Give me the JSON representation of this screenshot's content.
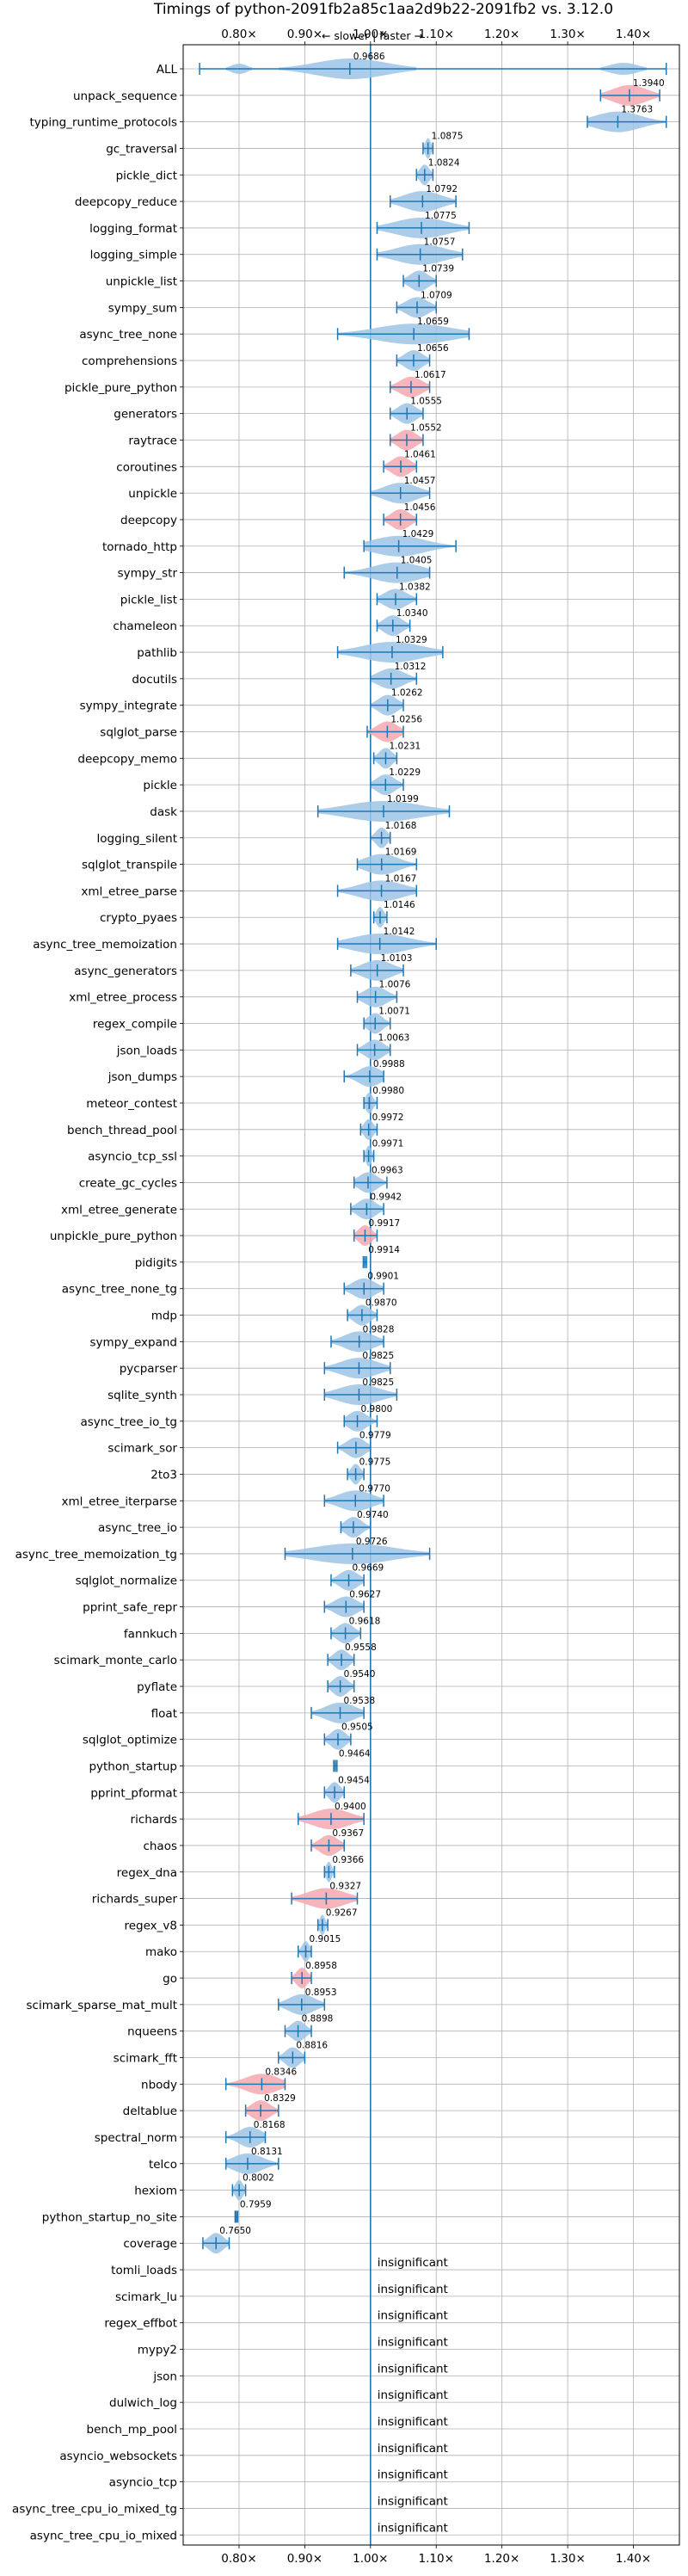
{
  "chart_data": {
    "type": "violin",
    "title": "Timings of python-2091fb2a85c1aa2d9b22-2091fb2 vs. 3.12.0",
    "direction_label": "← slower | faster →",
    "xlim": [
      0.715,
      1.47
    ],
    "xticks": [
      0.8,
      0.9,
      1.0,
      1.1,
      1.2,
      1.3,
      1.4
    ],
    "xtick_labels": [
      "0.80×",
      "0.90×",
      "1.00×",
      "1.10×",
      "1.20×",
      "1.30×",
      "1.40×"
    ],
    "grid": true,
    "colors": {
      "normal": "#9ec4e6",
      "highlight": "#f4a8ae",
      "line": "#1f77b4",
      "zero": "#1f77b4"
    },
    "rows": [
      {
        "name": "ALL",
        "value": 0.9686,
        "label": "0.9686",
        "lo": 0.74,
        "hi": 1.45,
        "hl": false,
        "shape": "all"
      },
      {
        "name": "unpack_sequence",
        "value": 1.394,
        "label": "1.3940",
        "lo": 1.35,
        "hi": 1.44,
        "hl": true
      },
      {
        "name": "typing_runtime_protocols",
        "value": 1.3763,
        "label": "1.3763",
        "lo": 1.33,
        "hi": 1.45,
        "hl": false
      },
      {
        "name": "gc_traversal",
        "value": 1.0875,
        "label": "1.0875",
        "lo": 1.08,
        "hi": 1.095,
        "hl": false
      },
      {
        "name": "pickle_dict",
        "value": 1.0824,
        "label": "1.0824",
        "lo": 1.07,
        "hi": 1.095,
        "hl": false
      },
      {
        "name": "deepcopy_reduce",
        "value": 1.0792,
        "label": "1.0792",
        "lo": 1.03,
        "hi": 1.13,
        "hl": false
      },
      {
        "name": "logging_format",
        "value": 1.0775,
        "label": "1.0775",
        "lo": 1.01,
        "hi": 1.15,
        "hl": false
      },
      {
        "name": "logging_simple",
        "value": 1.0757,
        "label": "1.0757",
        "lo": 1.01,
        "hi": 1.14,
        "hl": false
      },
      {
        "name": "unpickle_list",
        "value": 1.0739,
        "label": "1.0739",
        "lo": 1.05,
        "hi": 1.1,
        "hl": false
      },
      {
        "name": "sympy_sum",
        "value": 1.0709,
        "label": "1.0709",
        "lo": 1.04,
        "hi": 1.1,
        "hl": false
      },
      {
        "name": "async_tree_none",
        "value": 1.0659,
        "label": "1.0659",
        "lo": 0.95,
        "hi": 1.15,
        "hl": false
      },
      {
        "name": "comprehensions",
        "value": 1.0656,
        "label": "1.0656",
        "lo": 1.04,
        "hi": 1.09,
        "hl": false
      },
      {
        "name": "pickle_pure_python",
        "value": 1.0617,
        "label": "1.0617",
        "lo": 1.03,
        "hi": 1.09,
        "hl": true
      },
      {
        "name": "generators",
        "value": 1.0555,
        "label": "1.0555",
        "lo": 1.03,
        "hi": 1.08,
        "hl": false
      },
      {
        "name": "raytrace",
        "value": 1.0552,
        "label": "1.0552",
        "lo": 1.03,
        "hi": 1.08,
        "hl": true
      },
      {
        "name": "coroutines",
        "value": 1.0461,
        "label": "1.0461",
        "lo": 1.02,
        "hi": 1.07,
        "hl": true
      },
      {
        "name": "unpickle",
        "value": 1.0457,
        "label": "1.0457",
        "lo": 1.0,
        "hi": 1.09,
        "hl": false
      },
      {
        "name": "deepcopy",
        "value": 1.0456,
        "label": "1.0456",
        "lo": 1.02,
        "hi": 1.07,
        "hl": true
      },
      {
        "name": "tornado_http",
        "value": 1.0429,
        "label": "1.0429",
        "lo": 0.99,
        "hi": 1.13,
        "hl": false
      },
      {
        "name": "sympy_str",
        "value": 1.0405,
        "label": "1.0405",
        "lo": 0.96,
        "hi": 1.09,
        "hl": false
      },
      {
        "name": "pickle_list",
        "value": 1.0382,
        "label": "1.0382",
        "lo": 1.01,
        "hi": 1.07,
        "hl": false
      },
      {
        "name": "chameleon",
        "value": 1.034,
        "label": "1.0340",
        "lo": 1.01,
        "hi": 1.06,
        "hl": false
      },
      {
        "name": "pathlib",
        "value": 1.0329,
        "label": "1.0329",
        "lo": 0.95,
        "hi": 1.11,
        "hl": false
      },
      {
        "name": "docutils",
        "value": 1.0312,
        "label": "1.0312",
        "lo": 1.0,
        "hi": 1.07,
        "hl": false
      },
      {
        "name": "sympy_integrate",
        "value": 1.0262,
        "label": "1.0262",
        "lo": 1.0,
        "hi": 1.05,
        "hl": false
      },
      {
        "name": "sqlglot_parse",
        "value": 1.0256,
        "label": "1.0256",
        "lo": 0.995,
        "hi": 1.05,
        "hl": true
      },
      {
        "name": "deepcopy_memo",
        "value": 1.0231,
        "label": "1.0231",
        "lo": 1.005,
        "hi": 1.04,
        "hl": false
      },
      {
        "name": "pickle",
        "value": 1.0229,
        "label": "1.0229",
        "lo": 1.0,
        "hi": 1.05,
        "hl": false
      },
      {
        "name": "dask",
        "value": 1.0199,
        "label": "1.0199",
        "lo": 0.92,
        "hi": 1.12,
        "hl": false
      },
      {
        "name": "logging_silent",
        "value": 1.0168,
        "label": "1.0168",
        "lo": 1.0,
        "hi": 1.03,
        "hl": false
      },
      {
        "name": "sqlglot_transpile",
        "value": 1.0169,
        "label": "1.0169",
        "lo": 0.98,
        "hi": 1.07,
        "hl": false
      },
      {
        "name": "xml_etree_parse",
        "value": 1.0167,
        "label": "1.0167",
        "lo": 0.95,
        "hi": 1.07,
        "hl": false
      },
      {
        "name": "crypto_pyaes",
        "value": 1.0146,
        "label": "1.0146",
        "lo": 1.005,
        "hi": 1.025,
        "hl": false
      },
      {
        "name": "async_tree_memoization",
        "value": 1.0142,
        "label": "1.0142",
        "lo": 0.95,
        "hi": 1.1,
        "hl": false
      },
      {
        "name": "async_generators",
        "value": 1.0103,
        "label": "1.0103",
        "lo": 0.97,
        "hi": 1.05,
        "hl": false
      },
      {
        "name": "xml_etree_process",
        "value": 1.0076,
        "label": "1.0076",
        "lo": 0.98,
        "hi": 1.04,
        "hl": false
      },
      {
        "name": "regex_compile",
        "value": 1.0071,
        "label": "1.0071",
        "lo": 0.99,
        "hi": 1.03,
        "hl": false
      },
      {
        "name": "json_loads",
        "value": 1.0063,
        "label": "1.0063",
        "lo": 0.98,
        "hi": 1.03,
        "hl": false
      },
      {
        "name": "json_dumps",
        "value": 0.9988,
        "label": "0.9988",
        "lo": 0.96,
        "hi": 1.02,
        "hl": false
      },
      {
        "name": "meteor_contest",
        "value": 0.998,
        "label": "0.9980",
        "lo": 0.99,
        "hi": 1.01,
        "hl": false
      },
      {
        "name": "bench_thread_pool",
        "value": 0.9972,
        "label": "0.9972",
        "lo": 0.985,
        "hi": 1.01,
        "hl": false
      },
      {
        "name": "asyncio_tcp_ssl",
        "value": 0.9971,
        "label": "0.9971",
        "lo": 0.99,
        "hi": 1.005,
        "hl": false
      },
      {
        "name": "create_gc_cycles",
        "value": 0.9963,
        "label": "0.9963",
        "lo": 0.975,
        "hi": 1.025,
        "hl": false
      },
      {
        "name": "xml_etree_generate",
        "value": 0.9942,
        "label": "0.9942",
        "lo": 0.97,
        "hi": 1.02,
        "hl": false
      },
      {
        "name": "unpickle_pure_python",
        "value": 0.9917,
        "label": "0.9917",
        "lo": 0.975,
        "hi": 1.01,
        "hl": true
      },
      {
        "name": "pidigits",
        "value": 0.9914,
        "label": "0.9914",
        "lo": 0.989,
        "hi": 0.994,
        "hl": false
      },
      {
        "name": "async_tree_none_tg",
        "value": 0.9901,
        "label": "0.9901",
        "lo": 0.96,
        "hi": 1.02,
        "hl": false
      },
      {
        "name": "mdp",
        "value": 0.987,
        "label": "0.9870",
        "lo": 0.965,
        "hi": 1.01,
        "hl": false
      },
      {
        "name": "sympy_expand",
        "value": 0.9828,
        "label": "0.9828",
        "lo": 0.94,
        "hi": 1.02,
        "hl": false
      },
      {
        "name": "pycparser",
        "value": 0.9825,
        "label": "0.9825",
        "lo": 0.93,
        "hi": 1.03,
        "hl": false
      },
      {
        "name": "sqlite_synth",
        "value": 0.9825,
        "label": "0.9825",
        "lo": 0.93,
        "hi": 1.04,
        "hl": false
      },
      {
        "name": "async_tree_io_tg",
        "value": 0.98,
        "label": "0.9800",
        "lo": 0.96,
        "hi": 1.01,
        "hl": false
      },
      {
        "name": "scimark_sor",
        "value": 0.9779,
        "label": "0.9779",
        "lo": 0.95,
        "hi": 1.0,
        "hl": false
      },
      {
        "name": "2to3",
        "value": 0.9775,
        "label": "0.9775",
        "lo": 0.965,
        "hi": 0.99,
        "hl": false
      },
      {
        "name": "xml_etree_iterparse",
        "value": 0.977,
        "label": "0.9770",
        "lo": 0.93,
        "hi": 1.02,
        "hl": false
      },
      {
        "name": "async_tree_io",
        "value": 0.974,
        "label": "0.9740",
        "lo": 0.955,
        "hi": 1.0,
        "hl": false
      },
      {
        "name": "async_tree_memoization_tg",
        "value": 0.9726,
        "label": "0.9726",
        "lo": 0.87,
        "hi": 1.09,
        "hl": false
      },
      {
        "name": "sqlglot_normalize",
        "value": 0.9669,
        "label": "0.9669",
        "lo": 0.94,
        "hi": 0.99,
        "hl": false
      },
      {
        "name": "pprint_safe_repr",
        "value": 0.9627,
        "label": "0.9627",
        "lo": 0.93,
        "hi": 0.99,
        "hl": false
      },
      {
        "name": "fannkuch",
        "value": 0.9618,
        "label": "0.9618",
        "lo": 0.94,
        "hi": 0.985,
        "hl": false
      },
      {
        "name": "scimark_monte_carlo",
        "value": 0.9558,
        "label": "0.9558",
        "lo": 0.935,
        "hi": 0.975,
        "hl": false
      },
      {
        "name": "pyflate",
        "value": 0.954,
        "label": "0.9540",
        "lo": 0.935,
        "hi": 0.975,
        "hl": false
      },
      {
        "name": "float",
        "value": 0.9538,
        "label": "0.9538",
        "lo": 0.91,
        "hi": 0.99,
        "hl": false
      },
      {
        "name": "sqlglot_optimize",
        "value": 0.9505,
        "label": "0.9505",
        "lo": 0.93,
        "hi": 0.97,
        "hl": false
      },
      {
        "name": "python_startup",
        "value": 0.9464,
        "label": "0.9464",
        "lo": 0.944,
        "hi": 0.949,
        "hl": false
      },
      {
        "name": "pprint_pformat",
        "value": 0.9454,
        "label": "0.9454",
        "lo": 0.93,
        "hi": 0.96,
        "hl": false
      },
      {
        "name": "richards",
        "value": 0.94,
        "label": "0.9400",
        "lo": 0.89,
        "hi": 0.99,
        "hl": true
      },
      {
        "name": "chaos",
        "value": 0.9367,
        "label": "0.9367",
        "lo": 0.91,
        "hi": 0.96,
        "hl": true
      },
      {
        "name": "regex_dna",
        "value": 0.9366,
        "label": "0.9366",
        "lo": 0.93,
        "hi": 0.945,
        "hl": false
      },
      {
        "name": "richards_super",
        "value": 0.9327,
        "label": "0.9327",
        "lo": 0.88,
        "hi": 0.98,
        "hl": true
      },
      {
        "name": "regex_v8",
        "value": 0.9267,
        "label": "0.9267",
        "lo": 0.92,
        "hi": 0.935,
        "hl": false
      },
      {
        "name": "mako",
        "value": 0.9015,
        "label": "0.9015",
        "lo": 0.89,
        "hi": 0.91,
        "hl": false
      },
      {
        "name": "go",
        "value": 0.8958,
        "label": "0.8958",
        "lo": 0.88,
        "hi": 0.91,
        "hl": true
      },
      {
        "name": "scimark_sparse_mat_mult",
        "value": 0.8953,
        "label": "0.8953",
        "lo": 0.86,
        "hi": 0.93,
        "hl": false
      },
      {
        "name": "nqueens",
        "value": 0.8898,
        "label": "0.8898",
        "lo": 0.87,
        "hi": 0.91,
        "hl": false
      },
      {
        "name": "scimark_fft",
        "value": 0.8816,
        "label": "0.8816",
        "lo": 0.86,
        "hi": 0.9,
        "hl": false
      },
      {
        "name": "nbody",
        "value": 0.8346,
        "label": "0.8346",
        "lo": 0.78,
        "hi": 0.87,
        "hl": true
      },
      {
        "name": "deltablue",
        "value": 0.8329,
        "label": "0.8329",
        "lo": 0.81,
        "hi": 0.86,
        "hl": true
      },
      {
        "name": "spectral_norm",
        "value": 0.8168,
        "label": "0.8168",
        "lo": 0.78,
        "hi": 0.84,
        "hl": false
      },
      {
        "name": "telco",
        "value": 0.8131,
        "label": "0.8131",
        "lo": 0.78,
        "hi": 0.86,
        "hl": false
      },
      {
        "name": "hexiom",
        "value": 0.8002,
        "label": "0.8002",
        "lo": 0.79,
        "hi": 0.81,
        "hl": false
      },
      {
        "name": "python_startup_no_site",
        "value": 0.7959,
        "label": "0.7959",
        "lo": 0.794,
        "hi": 0.798,
        "hl": false
      },
      {
        "name": "coverage",
        "value": 0.765,
        "label": "0.7650",
        "lo": 0.745,
        "hi": 0.785,
        "hl": false
      },
      {
        "name": "tomli_loads",
        "insignificant": true,
        "label": "insignificant"
      },
      {
        "name": "scimark_lu",
        "insignificant": true,
        "label": "insignificant"
      },
      {
        "name": "regex_effbot",
        "insignificant": true,
        "label": "insignificant"
      },
      {
        "name": "mypy2",
        "insignificant": true,
        "label": "insignificant"
      },
      {
        "name": "json",
        "insignificant": true,
        "label": "insignificant"
      },
      {
        "name": "dulwich_log",
        "insignificant": true,
        "label": "insignificant"
      },
      {
        "name": "bench_mp_pool",
        "insignificant": true,
        "label": "insignificant"
      },
      {
        "name": "asyncio_websockets",
        "insignificant": true,
        "label": "insignificant"
      },
      {
        "name": "asyncio_tcp",
        "insignificant": true,
        "label": "insignificant"
      },
      {
        "name": "async_tree_cpu_io_mixed_tg",
        "insignificant": true,
        "label": "insignificant"
      },
      {
        "name": "async_tree_cpu_io_mixed",
        "insignificant": true,
        "label": "insignificant"
      }
    ]
  }
}
